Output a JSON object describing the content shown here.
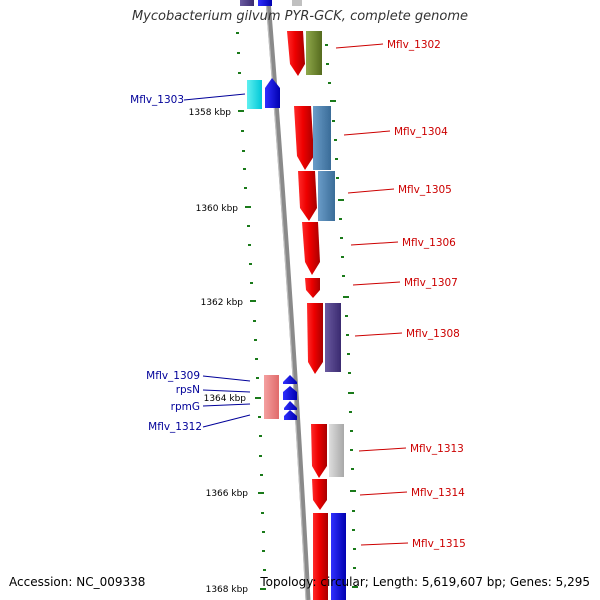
{
  "title": "Mycobacterium gilvum PYR-GCK, complete genome",
  "footer": {
    "accession": "Accession: NC_009338",
    "summary": "Topology: circular; Length: 5,619,607 bp; Genes: 5,295"
  },
  "colors": {
    "backbone": "#8a8a8a",
    "tick": "#1a7a1a",
    "forward_label": "#cc0000",
    "reverse_label": "#000099"
  },
  "axis": {
    "unit": "kbp",
    "labels": [
      "1358 kbp",
      "1360 kbp",
      "1362 kbp",
      "1364 kbp",
      "1366 kbp",
      "1368 kbp"
    ]
  },
  "genes": {
    "forward": [
      "Mflv_1302",
      "Mflv_1304",
      "Mflv_1305",
      "Mflv_1306",
      "Mflv_1307",
      "Mflv_1308",
      "Mflv_1313",
      "Mflv_1314",
      "Mflv_1315"
    ],
    "reverse": [
      "Mflv_1303",
      "Mflv_1309",
      "rpsN",
      "rpmG",
      "Mflv_1312"
    ]
  }
}
